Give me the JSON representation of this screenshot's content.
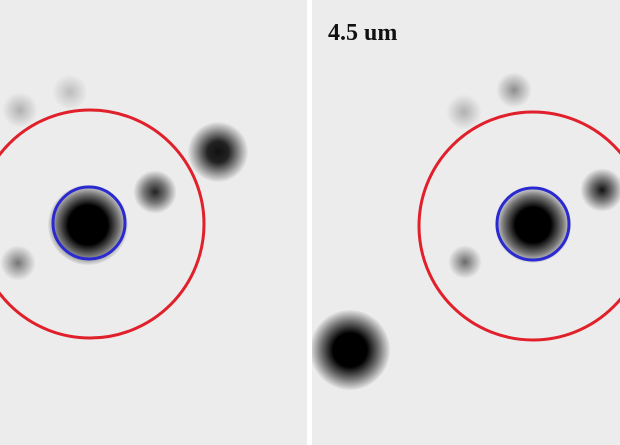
{
  "panels": [
    {
      "name": "left",
      "label": ""
    },
    {
      "name": "right",
      "label": "4.5 um"
    }
  ],
  "colors": {
    "aperture_outer": "#e0202a",
    "aperture_inner": "#2a2ad0",
    "background": "#ececec"
  }
}
